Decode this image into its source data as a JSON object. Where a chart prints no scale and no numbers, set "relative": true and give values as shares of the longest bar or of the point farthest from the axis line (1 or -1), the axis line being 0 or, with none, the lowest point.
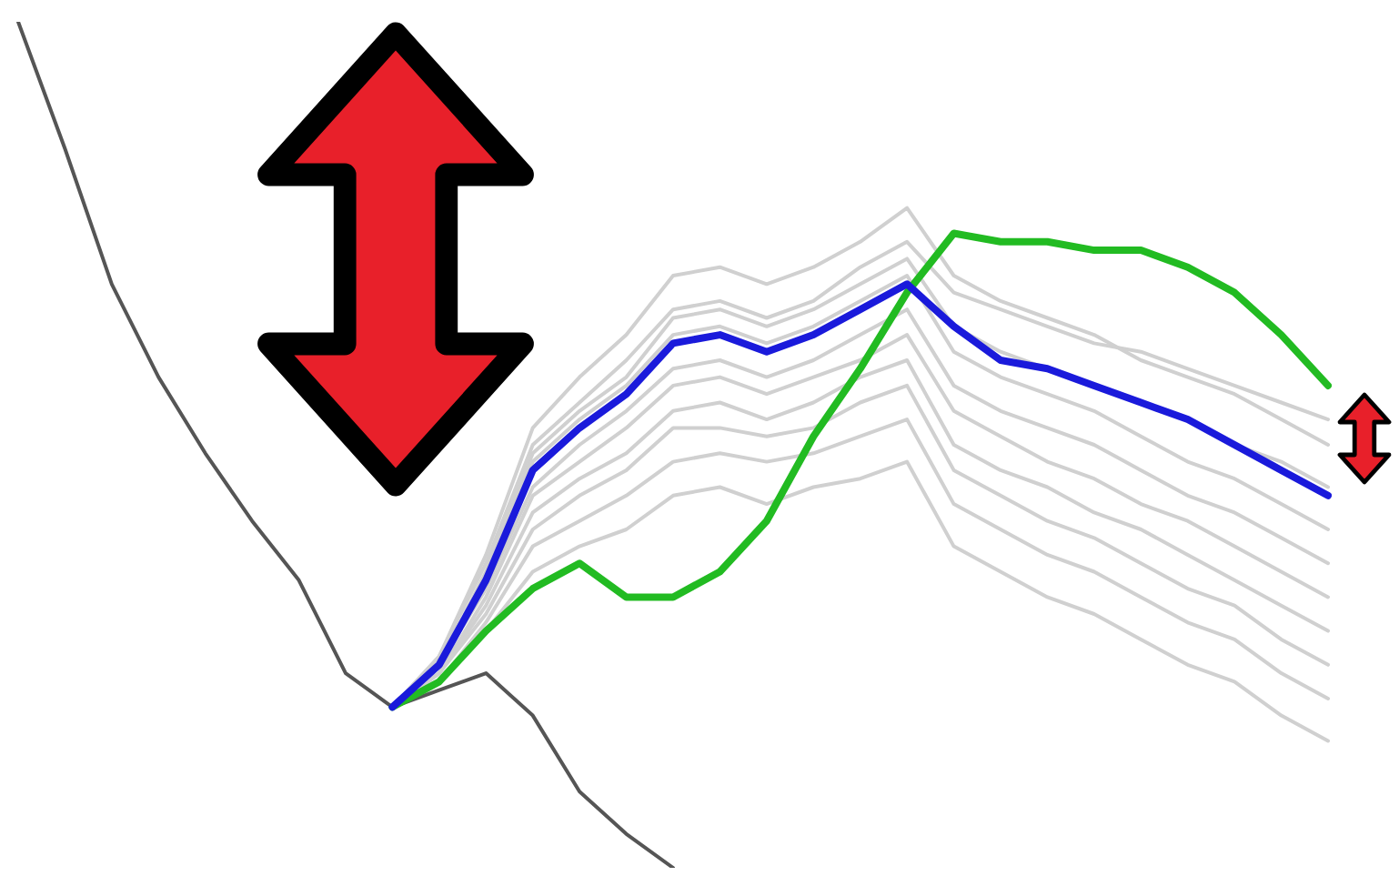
{
  "chart_data": {
    "type": "line",
    "relative": true,
    "marker": "none",
    "line_style": "solid",
    "categories": [
      null,
      null,
      null,
      null,
      null,
      null,
      null,
      null,
      null,
      null,
      null,
      null,
      null,
      null,
      null,
      null,
      null,
      null,
      null,
      null,
      null,
      null,
      null,
      null,
      null,
      null,
      null,
      null,
      null
    ],
    "series": [
      {
        "color": "#1a1adb",
        "values": [
          null,
          null,
          null,
          null,
          null,
          null,
          null,
          null,
          0.19,
          0.24,
          0.34,
          0.47,
          0.52,
          0.56,
          0.62,
          0.63,
          0.61,
          0.63,
          0.66,
          0.69,
          0.64,
          0.6,
          0.59,
          0.57,
          0.55,
          0.53,
          0.5,
          0.47,
          0.44
        ]
      },
      {
        "color": "#22bb22",
        "values": [
          null,
          null,
          null,
          null,
          null,
          null,
          null,
          null,
          0.19,
          0.22,
          0.28,
          0.33,
          0.36,
          0.32,
          0.32,
          0.35,
          0.41,
          0.51,
          0.59,
          0.68,
          0.75,
          0.74,
          0.74,
          0.73,
          0.73,
          0.71,
          0.68,
          0.63,
          0.57
        ]
      },
      {
        "color": "#555555",
        "values": [
          1,
          0.85,
          0.69,
          0.58,
          0.49,
          0.41,
          0.34,
          0.23,
          0.19,
          0.21,
          0.23,
          0.18,
          0.09,
          0.04,
          0,
          null,
          null,
          null,
          null,
          null,
          null,
          null,
          null,
          null,
          null,
          null,
          null,
          null,
          null
        ]
      },
      {
        "color": "#d0d0d0",
        "values": [
          null,
          null,
          null,
          null,
          null,
          null,
          null,
          null,
          0.19,
          0.25,
          0.37,
          0.52,
          0.58,
          0.63,
          0.7,
          0.71,
          0.69,
          0.71,
          0.74,
          0.78,
          0.7,
          0.67,
          0.65,
          0.63,
          0.6,
          0.58,
          0.56,
          0.53,
          0.5
        ]
      },
      {
        "color": "#d0d0d0",
        "values": [
          null,
          null,
          null,
          null,
          null,
          null,
          null,
          null,
          0.19,
          0.25,
          0.36,
          0.5,
          0.55,
          0.6,
          0.66,
          0.67,
          0.65,
          0.67,
          0.71,
          0.74,
          0.68,
          0.66,
          0.64,
          0.62,
          0.61,
          0.59,
          0.57,
          0.55,
          0.53
        ]
      },
      {
        "color": "#d0d0d0",
        "values": [
          null,
          null,
          null,
          null,
          null,
          null,
          null,
          null,
          0.19,
          0.24,
          0.35,
          0.49,
          0.54,
          0.58,
          0.65,
          0.66,
          0.64,
          0.66,
          0.69,
          0.72,
          0.64,
          0.61,
          0.59,
          0.57,
          0.55,
          0.53,
          0.5,
          0.48,
          0.45
        ]
      },
      {
        "color": "#d0d0d0",
        "values": [
          null,
          null,
          null,
          null,
          null,
          null,
          null,
          null,
          0.19,
          0.24,
          0.34,
          0.48,
          0.53,
          0.57,
          0.63,
          0.64,
          0.62,
          0.64,
          0.67,
          0.7,
          0.61,
          0.58,
          0.56,
          0.54,
          0.51,
          0.48,
          0.46,
          0.43,
          0.4
        ]
      },
      {
        "color": "#d0d0d0",
        "values": [
          null,
          null,
          null,
          null,
          null,
          null,
          null,
          null,
          0.19,
          0.24,
          0.33,
          0.45,
          0.5,
          0.54,
          0.59,
          0.6,
          0.58,
          0.6,
          0.63,
          0.66,
          0.57,
          0.54,
          0.52,
          0.5,
          0.47,
          0.44,
          0.42,
          0.39,
          0.36
        ]
      },
      {
        "color": "#d0d0d0",
        "values": [
          null,
          null,
          null,
          null,
          null,
          null,
          null,
          null,
          0.19,
          0.23,
          0.32,
          0.44,
          0.48,
          0.52,
          0.57,
          0.58,
          0.56,
          0.58,
          0.6,
          0.63,
          0.54,
          0.51,
          0.48,
          0.46,
          0.43,
          0.41,
          0.38,
          0.35,
          0.32
        ]
      },
      {
        "color": "#d0d0d0",
        "values": [
          null,
          null,
          null,
          null,
          null,
          null,
          null,
          null,
          0.19,
          0.23,
          0.31,
          0.42,
          0.46,
          0.49,
          0.54,
          0.55,
          0.53,
          0.55,
          0.58,
          0.6,
          0.5,
          0.47,
          0.45,
          0.42,
          0.4,
          0.37,
          0.34,
          0.31,
          0.28
        ]
      },
      {
        "color": "#d0d0d0",
        "values": [
          null,
          null,
          null,
          null,
          null,
          null,
          null,
          null,
          0.19,
          0.23,
          0.3,
          0.4,
          0.44,
          0.47,
          0.52,
          0.52,
          0.51,
          0.52,
          0.55,
          0.57,
          0.47,
          0.44,
          0.41,
          0.39,
          0.36,
          0.33,
          0.31,
          0.27,
          0.24
        ]
      },
      {
        "color": "#d0d0d0",
        "values": [
          null,
          null,
          null,
          null,
          null,
          null,
          null,
          null,
          0.19,
          0.22,
          0.29,
          0.38,
          0.41,
          0.44,
          0.48,
          0.49,
          0.48,
          0.49,
          0.51,
          0.53,
          0.43,
          0.4,
          0.37,
          0.35,
          0.32,
          0.29,
          0.27,
          0.23,
          0.2
        ]
      },
      {
        "color": "#d0d0d0",
        "values": [
          null,
          null,
          null,
          null,
          null,
          null,
          null,
          null,
          0.19,
          0.22,
          0.28,
          0.35,
          0.38,
          0.4,
          0.44,
          0.45,
          0.43,
          0.45,
          0.46,
          0.48,
          0.38,
          0.35,
          0.32,
          0.3,
          0.27,
          0.24,
          0.22,
          0.18,
          0.15
        ]
      }
    ]
  }
}
